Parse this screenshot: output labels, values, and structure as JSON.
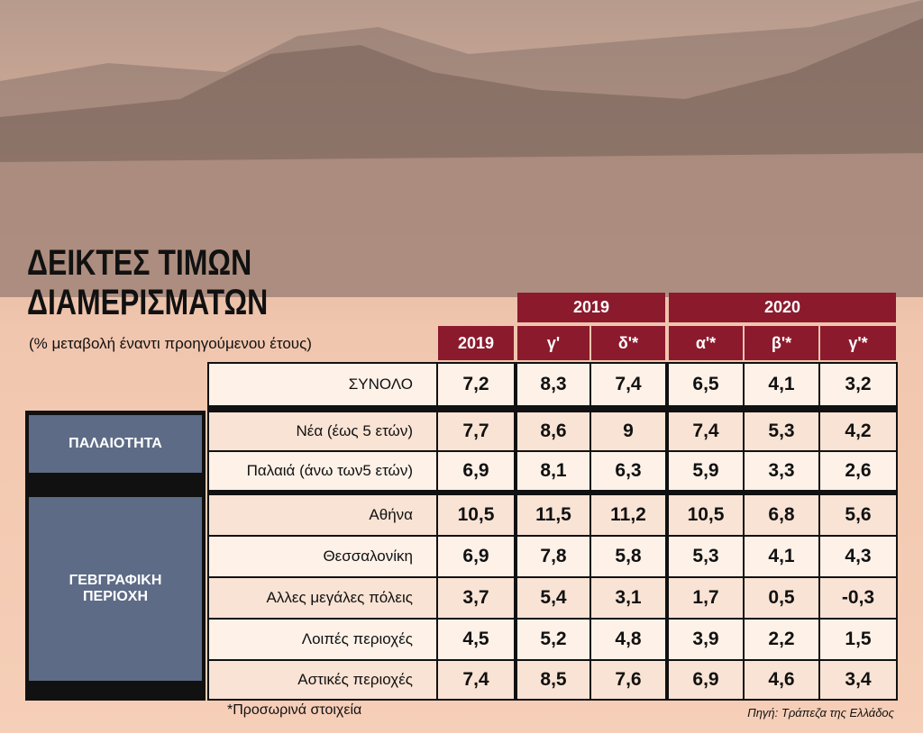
{
  "header": {
    "title": [
      "ΔΕΙΚΤΕΣ ΤΙΜΩΝ",
      "ΔΙΑΜΕΡΙΣΜΑΤΩΝ"
    ],
    "subtitle": "(% μεταβολή έναντι προηγούμενου έτους)"
  },
  "table": {
    "column_groups": [
      "2019",
      "2020"
    ],
    "columns": [
      "2019",
      "γ'",
      "δ'*",
      "α'*",
      "β'*",
      "γ'*"
    ],
    "row_groups": [
      {
        "lines": [
          "ΠΑΛΑΙΟΤΗΤΑ"
        ]
      },
      {
        "lines": [
          "ΓΕΒΓΡΑΦΙΚΗ",
          "ΠΕΡΙΟΧΗ"
        ]
      }
    ],
    "rows": [
      {
        "label": "ΣΥΝΟΛΟ",
        "values": [
          "7,2",
          "8,3",
          "7,4",
          "6,5",
          "4,1",
          "3,2"
        ]
      },
      {
        "label": "Νέα (έως 5 ετών)",
        "values": [
          "7,7",
          "8,6",
          "9",
          "7,4",
          "5,3",
          "4,2"
        ]
      },
      {
        "label": "Παλαιά (άνω των5 ετών)",
        "values": [
          "6,9",
          "8,1",
          "6,3",
          "5,9",
          "3,3",
          "2,6"
        ]
      },
      {
        "label": "Αθήνα",
        "values": [
          "10,5",
          "11,5",
          "11,2",
          "10,5",
          "6,8",
          "5,6"
        ]
      },
      {
        "label": "Θεσσαλονίκη",
        "values": [
          "6,9",
          "7,8",
          "5,8",
          "5,3",
          "4,1",
          "4,3"
        ]
      },
      {
        "label": "Αλλες μεγάλες πόλεις",
        "values": [
          "3,7",
          "5,4",
          "3,1",
          "1,7",
          "0,5",
          "-0,3"
        ]
      },
      {
        "label": "Λοιπές περιοχές",
        "values": [
          "4,5",
          "5,2",
          "4,8",
          "3,9",
          "2,2",
          "1,5"
        ]
      },
      {
        "label": "Αστικές περιοχές",
        "values": [
          "7,4",
          "8,5",
          "7,6",
          "6,9",
          "4,6",
          "3,4"
        ]
      }
    ]
  },
  "footer": {
    "note": "*Προσωρινά στοιχεία",
    "source": "Πηγή: Τράπεζα της Ελλάδος"
  }
}
